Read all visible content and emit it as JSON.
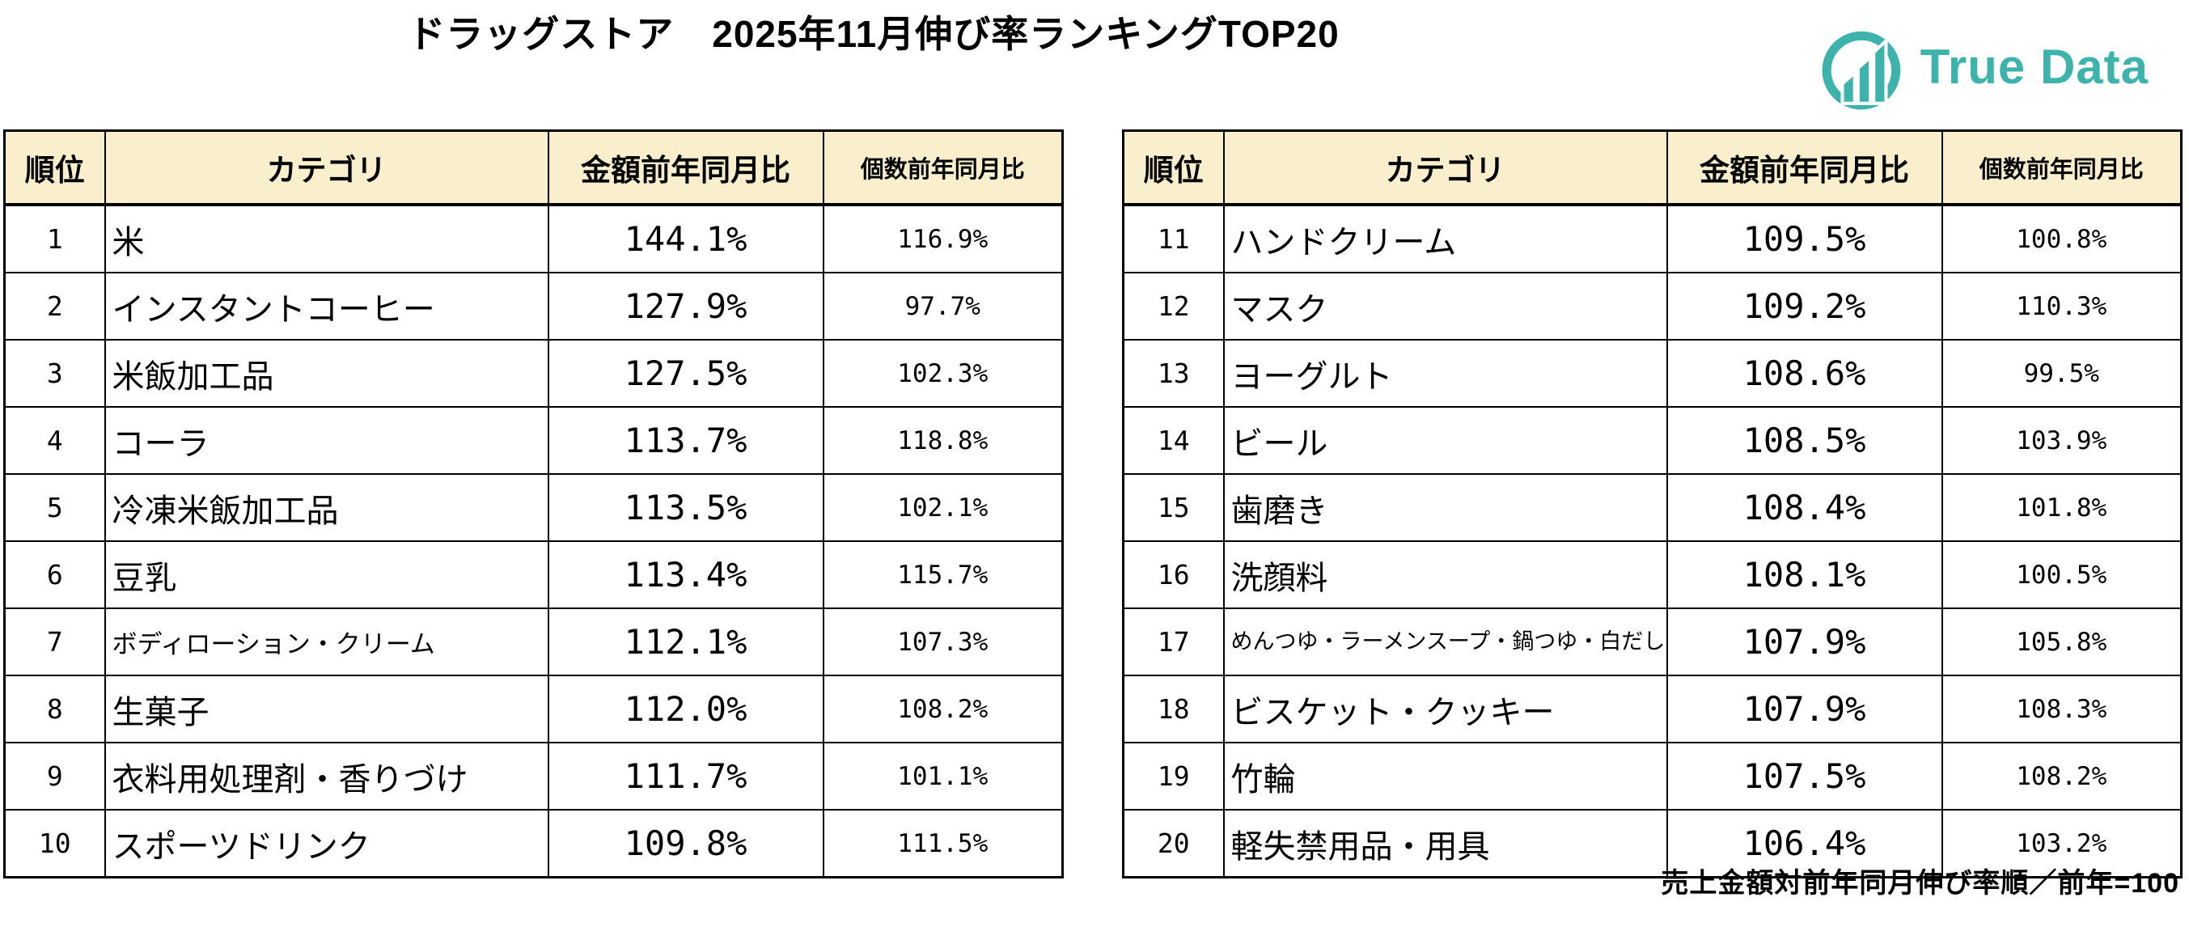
{
  "title": "ドラッグストア　2025年11月伸び率ランキングTOP20",
  "logo": {
    "brand": "True Data"
  },
  "footnote": "売上金額対前年同月伸び率順／前年=100",
  "colors": {
    "header_bg": "#FAEFCD",
    "border": "#000000",
    "brand_teal": "#3EB3AC",
    "text": "#000000"
  },
  "chart_data": [
    {
      "type": "table",
      "title": "ドラッグストア 2025年11月伸び率ランキング 順位1〜10",
      "columns": {
        "rank": "順位",
        "category": "カテゴリ",
        "amount": "金額前年同月比",
        "count": "個数前年同月比"
      },
      "rows": [
        {
          "rank": "1",
          "category": "米",
          "amount": "144.1%",
          "count": "116.9%"
        },
        {
          "rank": "2",
          "category": "インスタントコーヒー",
          "amount": "127.9%",
          "count": "97.7%"
        },
        {
          "rank": "3",
          "category": "米飯加工品",
          "amount": "127.5%",
          "count": "102.3%"
        },
        {
          "rank": "4",
          "category": "コーラ",
          "amount": "113.7%",
          "count": "118.8%"
        },
        {
          "rank": "5",
          "category": "冷凍米飯加工品",
          "amount": "113.5%",
          "count": "102.1%"
        },
        {
          "rank": "6",
          "category": "豆乳",
          "amount": "113.4%",
          "count": "115.7%"
        },
        {
          "rank": "7",
          "category": "ボディローション・クリーム",
          "amount": "112.1%",
          "count": "107.3%"
        },
        {
          "rank": "8",
          "category": "生菓子",
          "amount": "112.0%",
          "count": "108.2%"
        },
        {
          "rank": "9",
          "category": "衣料用処理剤・香りづけ",
          "amount": "111.7%",
          "count": "101.1%"
        },
        {
          "rank": "10",
          "category": "スポーツドリンク",
          "amount": "109.8%",
          "count": "111.5%"
        }
      ]
    },
    {
      "type": "table",
      "title": "ドラッグストア 2025年11月伸び率ランキング 順位11〜20",
      "columns": {
        "rank": "順位",
        "category": "カテゴリ",
        "amount": "金額前年同月比",
        "count": "個数前年同月比"
      },
      "rows": [
        {
          "rank": "11",
          "category": "ハンドクリーム",
          "amount": "109.5%",
          "count": "100.8%"
        },
        {
          "rank": "12",
          "category": "マスク",
          "amount": "109.2%",
          "count": "110.3%"
        },
        {
          "rank": "13",
          "category": "ヨーグルト",
          "amount": "108.6%",
          "count": "99.5%"
        },
        {
          "rank": "14",
          "category": "ビール",
          "amount": "108.5%",
          "count": "103.9%"
        },
        {
          "rank": "15",
          "category": "歯磨き",
          "amount": "108.4%",
          "count": "101.8%"
        },
        {
          "rank": "16",
          "category": "洗顔料",
          "amount": "108.1%",
          "count": "100.5%"
        },
        {
          "rank": "17",
          "category": "めんつゆ・ラーメンスープ・鍋つゆ・白だし",
          "amount": "107.9%",
          "count": "105.8%"
        },
        {
          "rank": "18",
          "category": "ビスケット・クッキー",
          "amount": "107.9%",
          "count": "108.3%"
        },
        {
          "rank": "19",
          "category": "竹輪",
          "amount": "107.5%",
          "count": "108.2%"
        },
        {
          "rank": "20",
          "category": "軽失禁用品・用具",
          "amount": "106.4%",
          "count": "103.2%"
        }
      ]
    }
  ]
}
